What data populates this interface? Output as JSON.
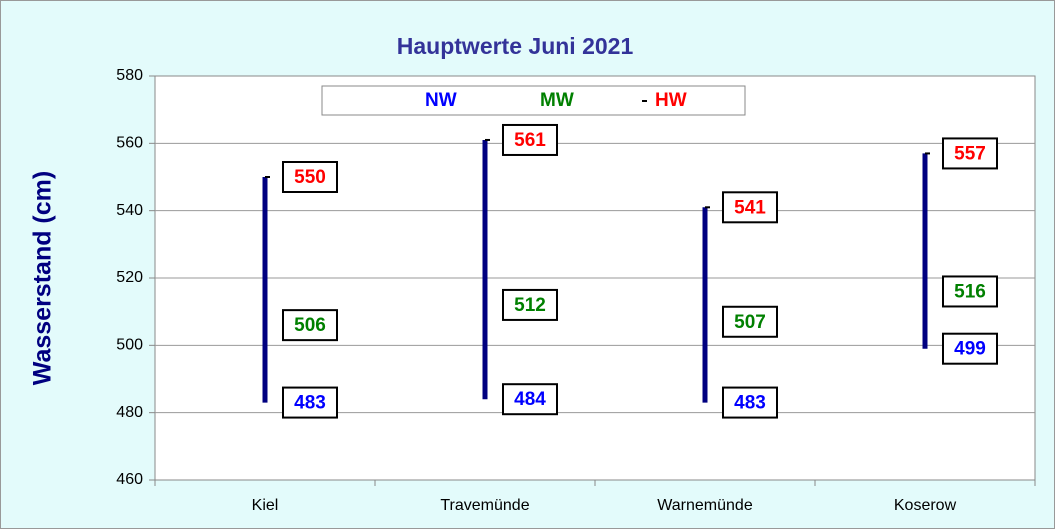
{
  "chart_data": {
    "type": "hilo",
    "title": "Hauptwerte Juni 2021",
    "y_label": "Wasserstand (cm)",
    "categories": [
      "Kiel",
      "Travemünde",
      "Warnemünde",
      "Koserow"
    ],
    "series": [
      {
        "name": "NW",
        "color": "#0000ff",
        "values": [
          483,
          484,
          483,
          499
        ]
      },
      {
        "name": "MW",
        "color": "#008000",
        "values": [
          506,
          512,
          507,
          516
        ]
      },
      {
        "name": "HW",
        "color": "#ff0000",
        "values": [
          550,
          561,
          541,
          557
        ]
      }
    ],
    "bar_color": "#000080",
    "ylim": [
      460,
      580
    ],
    "yticks": [
      460,
      480,
      500,
      520,
      540,
      560,
      580
    ],
    "grid": true,
    "legend": "top"
  }
}
